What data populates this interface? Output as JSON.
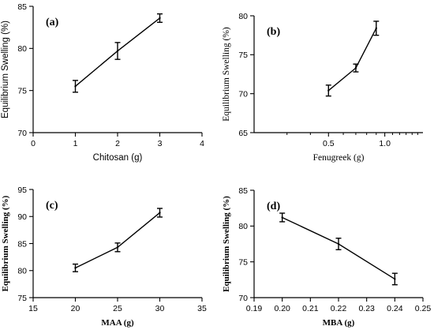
{
  "chart_data": [
    {
      "type": "line",
      "panel_label": "(a)",
      "xlabel": "Chitosan (g)",
      "ylabel": "Equilibrium Swelling (%)",
      "xlim": [
        0,
        4
      ],
      "ylim": [
        70,
        85
      ],
      "xticks": [
        0,
        1,
        2,
        3,
        4
      ],
      "yticks": [
        70,
        75,
        80,
        85
      ],
      "xtick_labels": [
        "0",
        "1",
        "2",
        "3",
        "4"
      ],
      "ytick_labels": [
        "70",
        "75",
        "80",
        "85"
      ],
      "x_log": false,
      "label_style": "sans",
      "series": [
        {
          "x": [
            1,
            2,
            3
          ],
          "y": [
            75.5,
            79.7,
            83.6
          ],
          "yerr": [
            0.7,
            1.0,
            0.5
          ]
        }
      ]
    },
    {
      "type": "line",
      "panel_label": "(b)",
      "xlabel": "Fenugreek (g)",
      "ylabel": "Equilibrium Swelling (%)",
      "xlim": [
        0.2,
        1.6
      ],
      "ylim": [
        65,
        80
      ],
      "xticks": [
        0.5,
        1.0
      ],
      "yticks": [
        65,
        70,
        75,
        80
      ],
      "xtick_labels": [
        "0.5",
        "1.0"
      ],
      "ytick_labels": [
        "65",
        "70",
        "75",
        "80"
      ],
      "x_log": true,
      "minor_xticks": [
        0.3,
        0.4,
        0.6,
        0.7,
        0.8,
        0.9,
        1.1,
        1.2,
        1.3,
        1.4,
        1.5
      ],
      "label_style": "serif",
      "series": [
        {
          "x": [
            0.5,
            0.7,
            0.9
          ],
          "y": [
            70.4,
            73.3,
            78.4
          ],
          "yerr": [
            0.7,
            0.5,
            0.9
          ]
        }
      ]
    },
    {
      "type": "line",
      "panel_label": "(c)",
      "xlabel": "MAA (g)",
      "ylabel": "Equilibrium Swelling (%)",
      "xlim": [
        15,
        35
      ],
      "ylim": [
        75,
        95
      ],
      "xticks": [
        15,
        20,
        25,
        30,
        35
      ],
      "yticks": [
        75,
        80,
        85,
        90,
        95
      ],
      "xtick_labels": [
        "15",
        "20",
        "25",
        "30",
        "35"
      ],
      "ytick_labels": [
        "75",
        "80",
        "85",
        "90",
        "95"
      ],
      "x_log": false,
      "label_style": "serif-bold",
      "series": [
        {
          "x": [
            20,
            25,
            30
          ],
          "y": [
            80.5,
            84.3,
            90.7
          ],
          "yerr": [
            0.7,
            0.8,
            0.8
          ]
        }
      ]
    },
    {
      "type": "line",
      "panel_label": "(d)",
      "xlabel": "MBA (g)",
      "ylabel": "Equilibrium Swelling (%)",
      "xlim": [
        0.19,
        0.25
      ],
      "ylim": [
        70,
        85
      ],
      "xticks": [
        0.19,
        0.2,
        0.21,
        0.22,
        0.23,
        0.24,
        0.25
      ],
      "yticks": [
        70,
        75,
        80,
        85
      ],
      "xtick_labels": [
        "0.19",
        "0.20",
        "0.21",
        "0.22",
        "0.23",
        "0.24",
        "0.25"
      ],
      "ytick_labels": [
        "70",
        "75",
        "80",
        "85"
      ],
      "x_log": false,
      "label_style": "serif-bold",
      "series": [
        {
          "x": [
            0.2,
            0.22,
            0.24
          ],
          "y": [
            81.2,
            77.5,
            72.6
          ],
          "yerr": [
            0.6,
            0.8,
            0.8
          ]
        }
      ]
    }
  ]
}
